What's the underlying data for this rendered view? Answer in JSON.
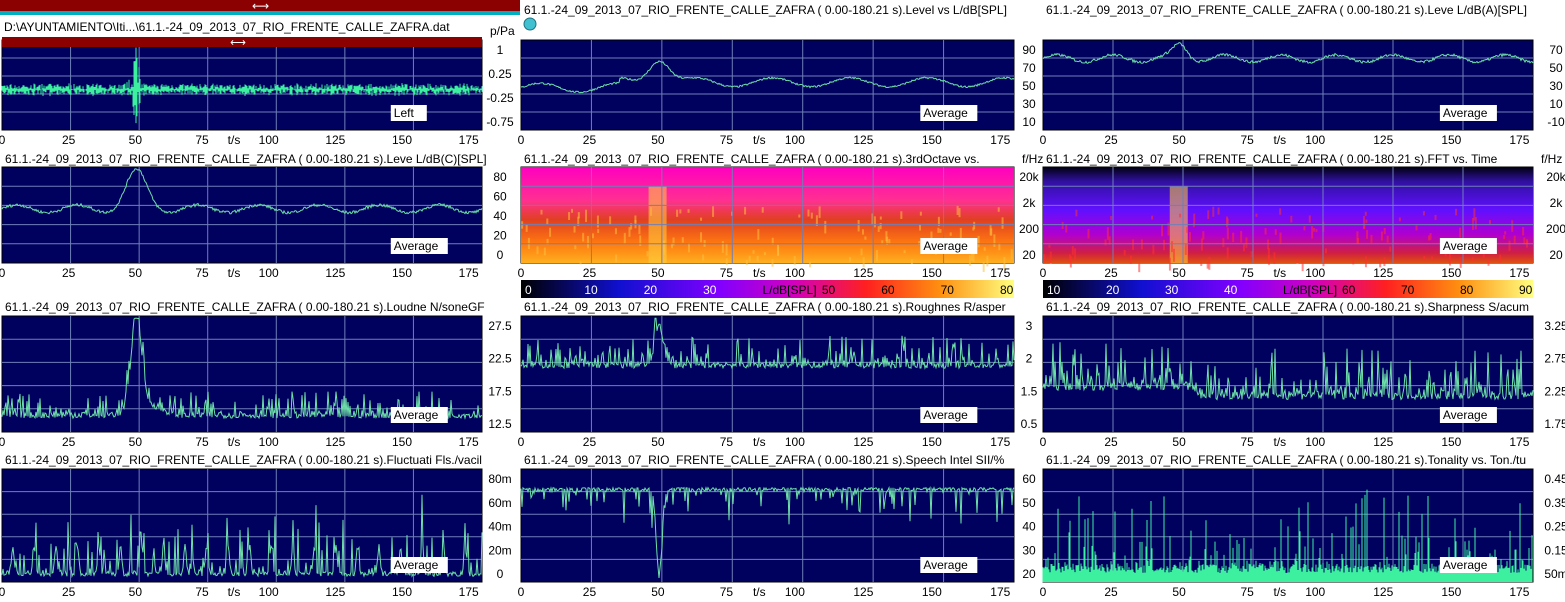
{
  "file_path": "D:\\AYUNTAMIENTO\\Iti...\\61.1.-24_09_2013_07_RIO_FRENTE_CALLE_ZAFRA.dat",
  "colors": {
    "plot_bg": "#00005e",
    "trace": "#6ee0a8",
    "trace_bright": "#3cf0a0",
    "grid": "#6f7fb8",
    "scrollbar": "#8b0000",
    "label_bg": "#ffffff"
  },
  "time_axis_unit": "t/s",
  "legend_label": "Average",
  "panels": [
    {
      "id": "p1",
      "title": "",
      "unit_label": "p/Pa",
      "overlay_label": "Left",
      "kind": "waveform",
      "y_ticks": [
        "1",
        "0.25",
        "-0.25",
        "-0.75"
      ],
      "x_ticks": [
        "0",
        "25",
        "50",
        "75",
        "t/s",
        "100",
        "125",
        "150",
        "175"
      ]
    },
    {
      "id": "p2",
      "title": "61.1.-24_09_2013_07_RIO_FRENTE_CALLE_ZAFRA ( 0.00-180.21 s).Level vs L/dB[SPL]",
      "unit_label": "",
      "overlay_label": "Average",
      "kind": "line",
      "y_ticks": [
        "90",
        "70",
        "50",
        "30",
        "10"
      ],
      "x_ticks": [
        "0",
        "25",
        "50",
        "75",
        "t/s",
        "100",
        "125",
        "150",
        "175"
      ]
    },
    {
      "id": "p3",
      "title": "61.1.-24_09_2013_07_RIO_FRENTE_CALLE_ZAFRA ( 0.00-180.21 s).Leve L/dB(A)[SPL]",
      "unit_label": "",
      "overlay_label": "Average",
      "kind": "line",
      "y_ticks": [
        "70",
        "50",
        "30",
        "10",
        "-10"
      ],
      "x_ticks": [
        "0",
        "25",
        "50",
        "75",
        "t/s",
        "100",
        "125",
        "150",
        "175"
      ]
    },
    {
      "id": "p4",
      "title": "61.1.-24_09_2013_07_RIO_FRENTE_CALLE_ZAFRA ( 0.00-180.21 s).Leve L/dB(C)[SPL]",
      "unit_label": "",
      "overlay_label": "Average",
      "kind": "line",
      "y_ticks": [
        "80",
        "60",
        "40",
        "20",
        "0"
      ],
      "x_ticks": [
        "0",
        "25",
        "50",
        "75",
        "t/s",
        "100",
        "125",
        "150",
        "175"
      ]
    },
    {
      "id": "p5",
      "title": "61.1.-24_09_2013_07_RIO_FRENTE_CALLE_ZAFRA ( 0.00-180.21 s).3rdOctave vs.",
      "unit_label": "f/Hz",
      "overlay_label": "Average",
      "kind": "spectrogram",
      "y_ticks": [
        "20k",
        "2k",
        "200",
        "20"
      ],
      "x_ticks": [
        "0",
        "25",
        "50",
        "75",
        "t/s",
        "100",
        "125",
        "150",
        "175"
      ],
      "colorbar": {
        "ticks": [
          "0",
          "10",
          "20",
          "30",
          "L/dB[SPL]",
          "50",
          "60",
          "70",
          "80"
        ]
      }
    },
    {
      "id": "p6",
      "title": "61.1.-24_09_2013_07_RIO_FRENTE_CALLE_ZAFRA ( 0.00-180.21 s).FFT vs. Time",
      "unit_label": "f/Hz",
      "overlay_label": "Average",
      "kind": "spectrogram",
      "y_ticks": [
        "20k",
        "2k",
        "200",
        "20"
      ],
      "x_ticks": [
        "0",
        "25",
        "50",
        "75",
        "t/s",
        "100",
        "125",
        "150",
        "175"
      ],
      "colorbar": {
        "ticks": [
          "10",
          "20",
          "30",
          "40",
          "L/dB[SPL]",
          "60",
          "70",
          "80",
          "90"
        ]
      }
    },
    {
      "id": "p7",
      "title": "61.1.-24_09_2013_07_RIO_FRENTE_CALLE_ZAFRA ( 0.00-180.21 s).Loudne N/soneGF",
      "unit_label": "",
      "overlay_label": "Average",
      "kind": "line",
      "y_ticks": [
        "27.5",
        "22.5",
        "17.5",
        "12.5"
      ],
      "x_ticks": [
        "0",
        "25",
        "50",
        "75",
        "t/s",
        "100",
        "125",
        "150",
        "175"
      ]
    },
    {
      "id": "p8",
      "title": "61.1.-24_09_2013_07_RIO_FRENTE_CALLE_ZAFRA ( 0.00-180.21 s).Roughnes R/asper",
      "unit_label": "",
      "overlay_label": "Average",
      "kind": "line",
      "y_ticks": [
        "3",
        "2",
        "1.5",
        "0.5"
      ],
      "x_ticks": [
        "0",
        "25",
        "50",
        "75",
        "t/s",
        "100",
        "125",
        "150",
        "175"
      ]
    },
    {
      "id": "p9",
      "title": "61.1.-24_09_2013_07_RIO_FRENTE_CALLE_ZAFRA ( 0.00-180.21 s).Sharpness S/acum",
      "unit_label": "",
      "overlay_label": "Average",
      "kind": "line",
      "y_ticks": [
        "3.25",
        "2.75",
        "2.25",
        "1.75"
      ],
      "x_ticks": [
        "0",
        "25",
        "50",
        "75",
        "t/s",
        "100",
        "125",
        "150",
        "175"
      ]
    },
    {
      "id": "p10",
      "title": "61.1.-24_09_2013_07_RIO_FRENTE_CALLE_ZAFRA ( 0.00-180.21 s).Fluctuati Fls./vacil",
      "unit_label": "",
      "overlay_label": "Average",
      "kind": "line",
      "y_ticks": [
        "80m",
        "60m",
        "40m",
        "20m",
        "0"
      ],
      "x_ticks": [
        "0",
        "25",
        "50",
        "75",
        "t/s",
        "100",
        "125",
        "150",
        "175"
      ]
    },
    {
      "id": "p11",
      "title": "61.1.-24_09_2013_07_RIO_FRENTE_CALLE_ZAFRA ( 0.00-180.21 s).Speech Intel SII/%",
      "unit_label": "",
      "overlay_label": "Average",
      "kind": "line",
      "y_ticks": [
        "60",
        "50",
        "40",
        "30",
        "20"
      ],
      "x_ticks": [
        "0",
        "25",
        "50",
        "75",
        "t/s",
        "100",
        "125",
        "150",
        "175"
      ]
    },
    {
      "id": "p12",
      "title": "61.1.-24_09_2013_07_RIO_FRENTE_CALLE_ZAFRA ( 0.00-180.21 s).Tonality vs. Ton./tu",
      "unit_label": "",
      "overlay_label": "Average",
      "kind": "bars",
      "y_ticks": [
        "0.45",
        "0.35",
        "0.25",
        "0.15",
        "50m"
      ],
      "x_ticks": [
        "0",
        "25",
        "50",
        "75",
        "t/s",
        "100",
        "125",
        "150",
        "175"
      ]
    }
  ]
}
